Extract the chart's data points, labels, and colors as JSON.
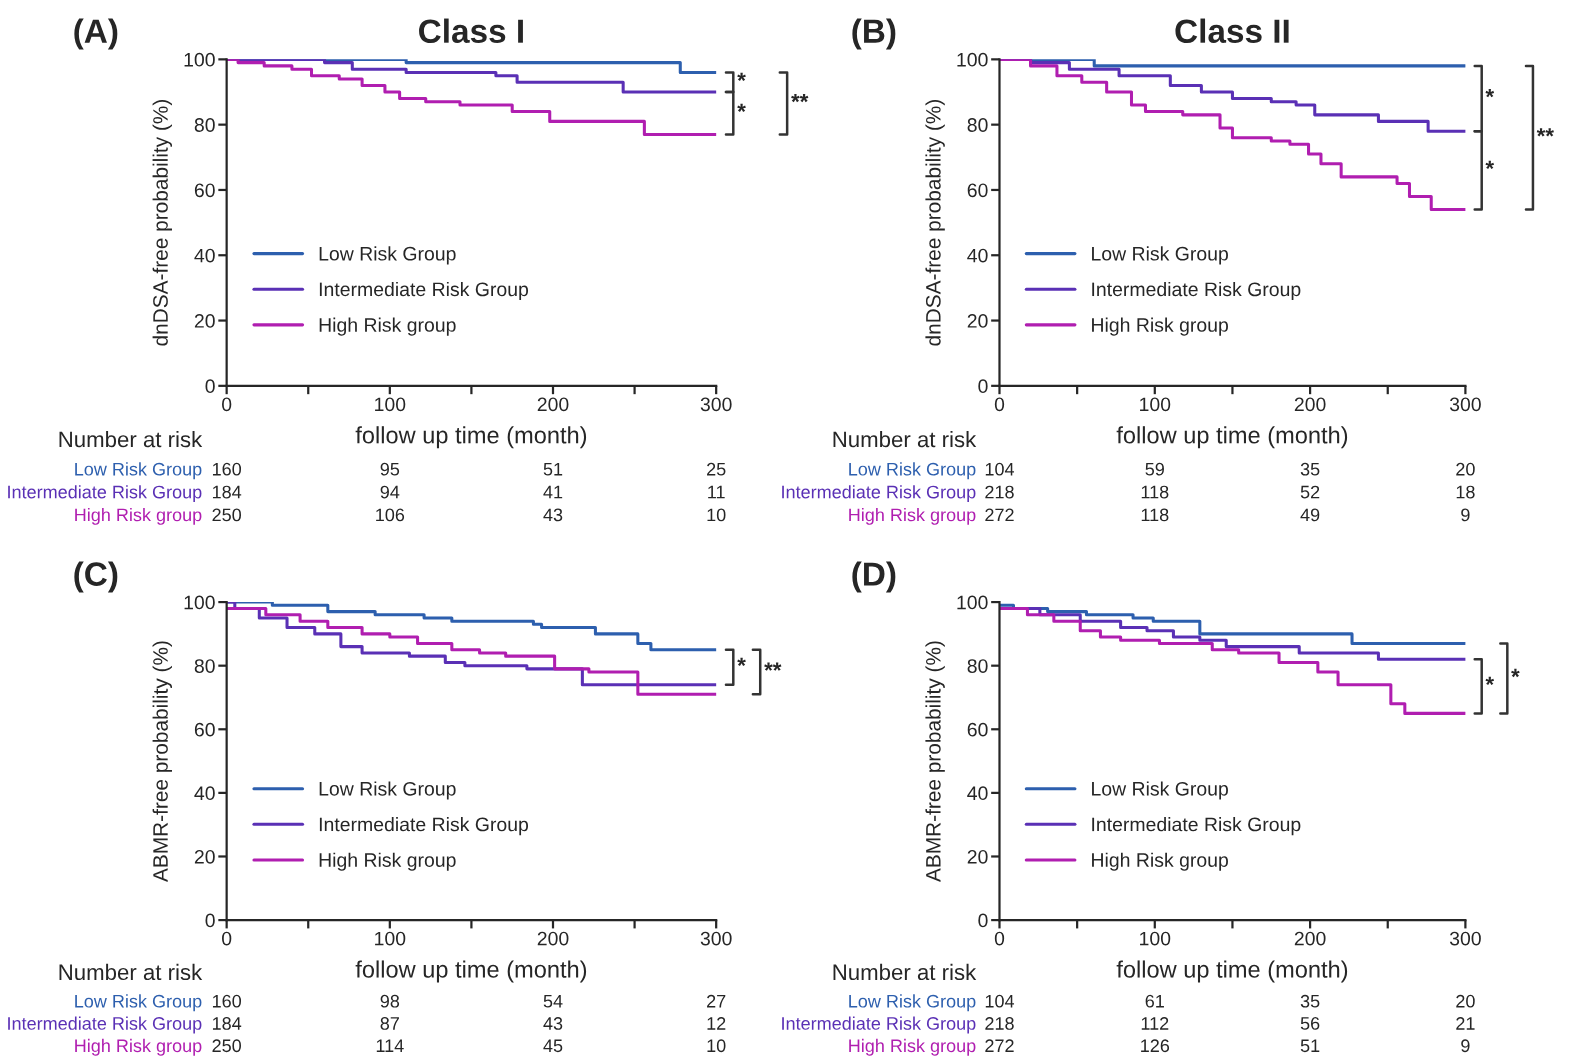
{
  "chart_data": [
    {
      "type": "step",
      "title": "Class I",
      "xlabel": "follow up time (month)",
      "ylabel": "dnDSA-free probability (%)",
      "xlim": [
        0,
        300
      ],
      "xticks": [
        0,
        {
          "value": 50,
          "label": null
        },
        100,
        {
          "value": 150,
          "label": null
        },
        200,
        {
          "value": 250,
          "label": null
        },
        300
      ],
      "ylim": [
        0,
        100
      ],
      "yticks": [
        0,
        20,
        40,
        60,
        80,
        100
      ],
      "grid": false,
      "legend": "left",
      "series": [
        {
          "name": "Low Risk Group",
          "color": "#2d5fae",
          "x": [
            0,
            50,
            110,
            278,
            300
          ],
          "values": [
            100,
            100,
            99,
            96,
            96
          ]
        },
        {
          "name": "Intermediate Risk Group",
          "color": "#5a30b5",
          "x": [
            0,
            60,
            77,
            110,
            165,
            178,
            243,
            300
          ],
          "values": [
            100,
            99,
            97,
            96,
            95,
            93,
            90,
            90
          ]
        },
        {
          "name": "High Risk group",
          "color": "#b01eb0",
          "x": [
            0,
            7,
            23,
            40,
            52,
            69,
            83,
            97,
            106,
            122,
            143,
            175,
            198,
            256,
            300
          ],
          "values": [
            100,
            99,
            98,
            97,
            95,
            94,
            92,
            90,
            88,
            87,
            86,
            84,
            81,
            77,
            77
          ]
        }
      ],
      "annotations": [
        "(A)",
        "*",
        "*",
        "**",
        "Number at risk",
        "Low Risk Group",
        "Intermediate Risk Group",
        "High Risk group",
        "160",
        "95",
        "51",
        "25",
        "184",
        "94",
        "41",
        "11",
        "250",
        "106",
        "43",
        "10"
      ]
    },
    {
      "type": "step",
      "title": "Class II",
      "xlabel": "follow up time (month)",
      "ylabel": "dnDSA-free probability (%)",
      "xlim": [
        0,
        300
      ],
      "xticks": [
        0,
        {
          "value": 50,
          "label": null
        },
        100,
        {
          "value": 150,
          "label": null
        },
        200,
        {
          "value": 250,
          "label": null
        },
        300
      ],
      "ylim": [
        0,
        100
      ],
      "yticks": [
        0,
        20,
        40,
        60,
        80,
        100
      ],
      "grid": false,
      "legend": "left",
      "series": [
        {
          "name": "Low Risk Group",
          "color": "#2d5fae",
          "x": [
            0,
            30,
            61,
            300
          ],
          "values": [
            100,
            100,
            98,
            98
          ]
        },
        {
          "name": "Intermediate Risk Group",
          "color": "#5a30b5",
          "x": [
            0,
            20,
            45,
            77,
            110,
            130,
            150,
            175,
            191,
            203,
            244,
            276,
            300
          ],
          "values": [
            100,
            99,
            97,
            95,
            92,
            90,
            88,
            87,
            86,
            83,
            81,
            78,
            78
          ]
        },
        {
          "name": "High Risk group",
          "color": "#b01eb0",
          "x": [
            0,
            20,
            37,
            53,
            69,
            85,
            94,
            118,
            142,
            150,
            175,
            187,
            199,
            207,
            220,
            256,
            264,
            278,
            300
          ],
          "values": [
            100,
            98,
            95,
            93,
            90,
            86,
            84,
            83,
            79,
            76,
            75,
            74,
            71,
            68,
            64,
            62,
            58,
            54,
            54
          ]
        }
      ],
      "annotations": [
        "(B)",
        "*",
        "*",
        "**",
        "Number at risk",
        "Low Risk Group",
        "Intermediate Risk Group",
        "High Risk group",
        "104",
        "59",
        "35",
        "20",
        "218",
        "118",
        "52",
        "18",
        "272",
        "118",
        "49",
        "9"
      ]
    },
    {
      "type": "step",
      "xlabel": "follow up time (month)",
      "ylabel": "ABMR-free probability (%)",
      "xlim": [
        0,
        300
      ],
      "xticks": [
        0,
        {
          "value": 50,
          "label": null
        },
        100,
        {
          "value": 150,
          "label": null
        },
        200,
        {
          "value": 250,
          "label": null
        },
        300
      ],
      "ylim": [
        0,
        100
      ],
      "yticks": [
        0,
        20,
        40,
        60,
        80,
        100
      ],
      "grid": false,
      "legend": "left",
      "series": [
        {
          "name": "Low Risk Group",
          "color": "#2d5fae",
          "x": [
            0,
            11,
            28,
            62,
            91,
            121,
            138,
            188,
            193,
            226,
            252,
            260,
            300
          ],
          "values": [
            100,
            100,
            99,
            97,
            96,
            95,
            94,
            93,
            92,
            90,
            87,
            85,
            85
          ]
        },
        {
          "name": "Intermediate Risk Group",
          "color": "#5a30b5",
          "x": [
            0,
            5,
            20,
            37,
            54,
            70,
            83,
            112,
            134,
            146,
            184,
            218,
            300
          ],
          "values": [
            100,
            98,
            95,
            92,
            90,
            86,
            84,
            83,
            81,
            80,
            79,
            74,
            74
          ]
        },
        {
          "name": "High Risk group",
          "color": "#b01eb0",
          "x": [
            0,
            24,
            45,
            62,
            83,
            100,
            117,
            138,
            155,
            171,
            201,
            222,
            252,
            300
          ],
          "values": [
            98,
            96,
            94,
            92,
            90,
            89,
            87,
            85,
            84,
            83,
            79,
            78,
            71,
            71
          ]
        }
      ],
      "annotations": [
        "(C)",
        "*",
        "**",
        "Number at risk",
        "Low Risk Group",
        "Intermediate Risk Group",
        "High Risk group",
        "160",
        "98",
        "54",
        "27",
        "184",
        "87",
        "43",
        "12",
        "250",
        "114",
        "45",
        "10"
      ]
    },
    {
      "type": "step",
      "xlabel": "follow up time (month)",
      "ylabel": "ABMR-free probability (%)",
      "xlim": [
        0,
        300
      ],
      "xticks": [
        0,
        {
          "value": 50,
          "label": null
        },
        100,
        {
          "value": 150,
          "label": null
        },
        200,
        {
          "value": 250,
          "label": null
        },
        300
      ],
      "ylim": [
        0,
        100
      ],
      "yticks": [
        0,
        20,
        40,
        60,
        80,
        100
      ],
      "grid": false,
      "legend": "left",
      "series": [
        {
          "name": "Low Risk Group",
          "color": "#2d5fae",
          "x": [
            0,
            9,
            31,
            56,
            86,
            99,
            129,
            227,
            300
          ],
          "values": [
            99,
            98,
            97,
            96,
            95,
            94,
            90,
            87,
            87
          ]
        },
        {
          "name": "Intermediate Risk Group",
          "color": "#5a30b5",
          "x": [
            0,
            26,
            52,
            78,
            95,
            112,
            129,
            146,
            193,
            244,
            300
          ],
          "values": [
            98,
            96,
            94,
            92,
            91,
            89,
            88,
            86,
            84,
            82,
            82
          ]
        },
        {
          "name": "High Risk group",
          "color": "#b01eb0",
          "x": [
            0,
            18,
            35,
            52,
            65,
            78,
            103,
            137,
            154,
            180,
            205,
            218,
            252,
            261,
            300
          ],
          "values": [
            98,
            96,
            94,
            91,
            89,
            88,
            87,
            85,
            84,
            81,
            78,
            74,
            68,
            65,
            65
          ]
        }
      ],
      "annotations": [
        "(D)",
        "*",
        "*",
        "Number at risk",
        "Low Risk Group",
        "Intermediate Risk Group",
        "High Risk group",
        "104",
        "61",
        "35",
        "20",
        "218",
        "112",
        "56",
        "21",
        "272",
        "126",
        "51",
        "9"
      ]
    }
  ]
}
